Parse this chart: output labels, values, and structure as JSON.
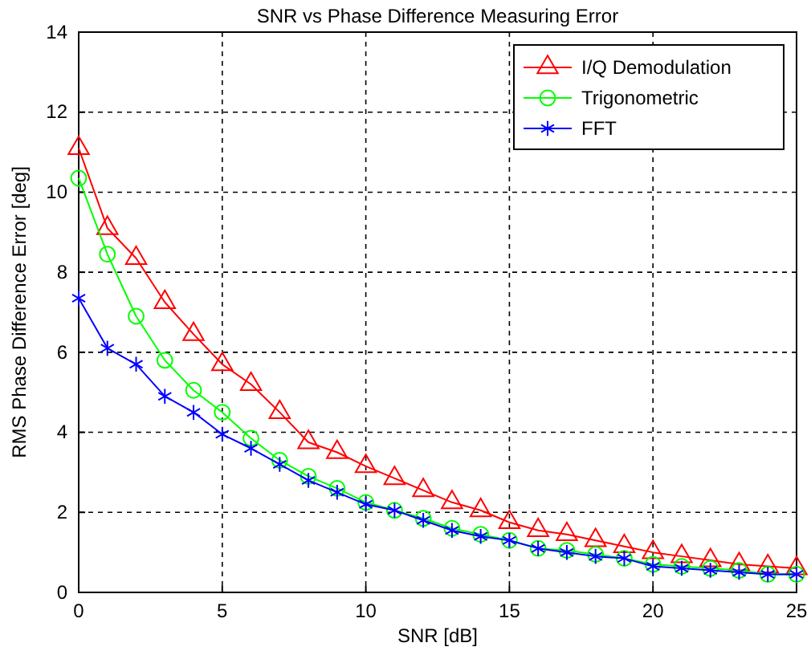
{
  "chart_data": {
    "type": "line",
    "title": "SNR vs Phase Difference Measuring Error",
    "xlabel": "SNR [dB]",
    "ylabel": "RMS Phase Difference Error [deg]",
    "x": [
      0,
      1,
      2,
      3,
      4,
      5,
      6,
      7,
      8,
      9,
      10,
      11,
      12,
      13,
      14,
      15,
      16,
      17,
      18,
      19,
      20,
      21,
      22,
      23,
      24,
      25
    ],
    "series": [
      {
        "name": "I/Q Demodulation",
        "color": "#ff0000",
        "marker": "triangle",
        "values": [
          11.1,
          9.1,
          8.35,
          7.25,
          6.45,
          5.7,
          5.2,
          4.5,
          3.75,
          3.5,
          3.15,
          2.85,
          2.55,
          2.25,
          2.05,
          1.75,
          1.55,
          1.45,
          1.3,
          1.15,
          1.0,
          0.9,
          0.8,
          0.7,
          0.65,
          0.6
        ]
      },
      {
        "name": "Trigonometric",
        "color": "#00ff00",
        "marker": "circle",
        "values": [
          10.35,
          8.45,
          6.9,
          5.8,
          5.05,
          4.5,
          3.85,
          3.3,
          2.9,
          2.6,
          2.25,
          2.05,
          1.85,
          1.6,
          1.45,
          1.3,
          1.1,
          1.05,
          0.95,
          0.85,
          0.7,
          0.65,
          0.6,
          0.55,
          0.45,
          0.45
        ]
      },
      {
        "name": "FFT",
        "color": "#0000ff",
        "marker": "cross",
        "values": [
          7.35,
          6.1,
          5.7,
          4.9,
          4.5,
          3.95,
          3.6,
          3.2,
          2.8,
          2.5,
          2.2,
          2.05,
          1.8,
          1.55,
          1.4,
          1.3,
          1.1,
          1.0,
          0.9,
          0.85,
          0.65,
          0.6,
          0.55,
          0.5,
          0.45,
          0.45
        ]
      }
    ],
    "xlim": [
      0,
      25
    ],
    "xticks": [
      0,
      5,
      10,
      15,
      20,
      25
    ],
    "ylim": [
      0,
      14
    ],
    "yticks": [
      0,
      2,
      4,
      6,
      8,
      10,
      12,
      14
    ],
    "grid": true,
    "legend": "top right",
    "line_style": "solid"
  }
}
